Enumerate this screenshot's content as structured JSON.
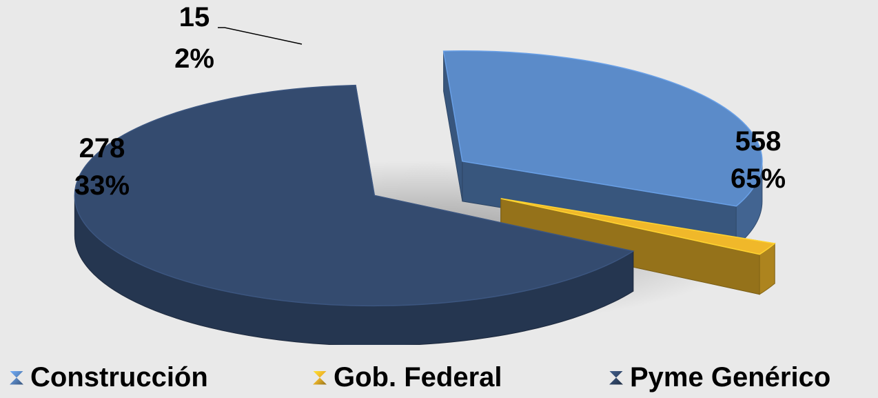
{
  "chart_data": {
    "type": "pie",
    "title": "",
    "slices": [
      {
        "name": "Construcción",
        "value": 278,
        "percent_label": "33%",
        "color": "#5b8bc9"
      },
      {
        "name": "Gob. Federal",
        "value": 15,
        "percent_label": "2%",
        "color": "#f0b82a"
      },
      {
        "name": "Pyme Genérico",
        "value": 558,
        "percent_label": "65%",
        "color": "#344b6f"
      }
    ],
    "legend_position": "bottom",
    "style": "3d-exploded"
  }
}
